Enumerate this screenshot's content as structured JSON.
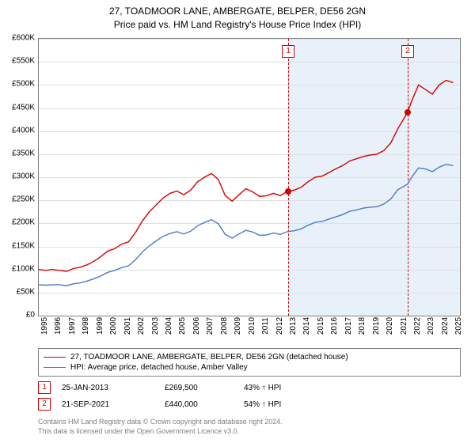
{
  "chart": {
    "title_line1": "27, TOADMOOR LANE, AMBERGATE, BELPER, DE56 2GN",
    "title_line2": "Price paid vs. HM Land Registry's House Price Index (HPI)",
    "background_color": "#ffffff",
    "border_color": "#7f7f7f",
    "grid_color": "#e0e0e0",
    "band_color": "#e8f0fa",
    "y": {
      "min": 0,
      "max": 600000,
      "step": 50000,
      "labels": [
        "£0",
        "£50K",
        "£100K",
        "£150K",
        "£200K",
        "£250K",
        "£300K",
        "£350K",
        "£400K",
        "£450K",
        "£500K",
        "£550K",
        "£600K"
      ]
    },
    "x": {
      "min": 1995,
      "max": 2025.5,
      "labels": [
        "1995",
        "1996",
        "1997",
        "1998",
        "1999",
        "2000",
        "2001",
        "2002",
        "2003",
        "2004",
        "2005",
        "2006",
        "2007",
        "2008",
        "2009",
        "2010",
        "2011",
        "2012",
        "2013",
        "2014",
        "2015",
        "2016",
        "2017",
        "2018",
        "2019",
        "2020",
        "2021",
        "2022",
        "2023",
        "2024",
        "2025"
      ]
    },
    "series": [
      {
        "name": "27, TOADMOOR LANE, AMBERGATE, BELPER, DE56 2GN (detached house)",
        "color": "#d40000",
        "points": [
          [
            1995,
            100000
          ],
          [
            1995.5,
            98000
          ],
          [
            1996,
            100000
          ],
          [
            1996.5,
            98000
          ],
          [
            1997,
            96000
          ],
          [
            1997.5,
            102000
          ],
          [
            1998,
            105000
          ],
          [
            1998.5,
            110000
          ],
          [
            1999,
            118000
          ],
          [
            1999.5,
            128000
          ],
          [
            2000,
            140000
          ],
          [
            2000.5,
            145000
          ],
          [
            2001,
            155000
          ],
          [
            2001.5,
            160000
          ],
          [
            2002,
            180000
          ],
          [
            2002.5,
            205000
          ],
          [
            2003,
            225000
          ],
          [
            2003.5,
            240000
          ],
          [
            2004,
            255000
          ],
          [
            2004.5,
            265000
          ],
          [
            2005,
            270000
          ],
          [
            2005.5,
            262000
          ],
          [
            2006,
            272000
          ],
          [
            2006.5,
            290000
          ],
          [
            2007,
            300000
          ],
          [
            2007.5,
            308000
          ],
          [
            2008,
            295000
          ],
          [
            2008.5,
            260000
          ],
          [
            2009,
            248000
          ],
          [
            2009.5,
            262000
          ],
          [
            2010,
            275000
          ],
          [
            2010.5,
            268000
          ],
          [
            2011,
            258000
          ],
          [
            2011.5,
            260000
          ],
          [
            2012,
            265000
          ],
          [
            2012.5,
            260000
          ],
          [
            2013,
            269500
          ],
          [
            2013.5,
            272000
          ],
          [
            2014,
            278000
          ],
          [
            2014.5,
            290000
          ],
          [
            2015,
            300000
          ],
          [
            2015.5,
            302000
          ],
          [
            2016,
            310000
          ],
          [
            2016.5,
            318000
          ],
          [
            2017,
            325000
          ],
          [
            2017.5,
            335000
          ],
          [
            2018,
            340000
          ],
          [
            2018.5,
            345000
          ],
          [
            2019,
            348000
          ],
          [
            2019.5,
            350000
          ],
          [
            2020,
            358000
          ],
          [
            2020.5,
            375000
          ],
          [
            2021,
            405000
          ],
          [
            2021.7,
            440000
          ],
          [
            2022,
            465000
          ],
          [
            2022.5,
            500000
          ],
          [
            2023,
            490000
          ],
          [
            2023.5,
            480000
          ],
          [
            2024,
            500000
          ],
          [
            2024.5,
            510000
          ],
          [
            2025,
            505000
          ]
        ]
      },
      {
        "name": "HPI: Average price, detached house, Amber Valley",
        "color": "#4a7bc8",
        "points": [
          [
            1995,
            67000
          ],
          [
            1995.5,
            66000
          ],
          [
            1996,
            67000
          ],
          [
            1996.5,
            67000
          ],
          [
            1997,
            65000
          ],
          [
            1997.5,
            69000
          ],
          [
            1998,
            71000
          ],
          [
            1998.5,
            75000
          ],
          [
            1999,
            80000
          ],
          [
            1999.5,
            86000
          ],
          [
            2000,
            94000
          ],
          [
            2000.5,
            98000
          ],
          [
            2001,
            104000
          ],
          [
            2001.5,
            108000
          ],
          [
            2002,
            121000
          ],
          [
            2002.5,
            138000
          ],
          [
            2003,
            151000
          ],
          [
            2003.5,
            162000
          ],
          [
            2004,
            172000
          ],
          [
            2004.5,
            178000
          ],
          [
            2005,
            182000
          ],
          [
            2005.5,
            177000
          ],
          [
            2006,
            183000
          ],
          [
            2006.5,
            195000
          ],
          [
            2007,
            202000
          ],
          [
            2007.5,
            208000
          ],
          [
            2008,
            199000
          ],
          [
            2008.5,
            176000
          ],
          [
            2009,
            168000
          ],
          [
            2009.5,
            177000
          ],
          [
            2010,
            185000
          ],
          [
            2010.5,
            181000
          ],
          [
            2011,
            174000
          ],
          [
            2011.5,
            175000
          ],
          [
            2012,
            179000
          ],
          [
            2012.5,
            176000
          ],
          [
            2013,
            182000
          ],
          [
            2013.5,
            184000
          ],
          [
            2014,
            188000
          ],
          [
            2014.5,
            196000
          ],
          [
            2015,
            202000
          ],
          [
            2015.5,
            204000
          ],
          [
            2016,
            209000
          ],
          [
            2016.5,
            214000
          ],
          [
            2017,
            219000
          ],
          [
            2017.5,
            226000
          ],
          [
            2018,
            229000
          ],
          [
            2018.5,
            233000
          ],
          [
            2019,
            235000
          ],
          [
            2019.5,
            236000
          ],
          [
            2020,
            242000
          ],
          [
            2020.5,
            253000
          ],
          [
            2021,
            273000
          ],
          [
            2021.7,
            285000
          ],
          [
            2022,
            300000
          ],
          [
            2022.5,
            320000
          ],
          [
            2023,
            318000
          ],
          [
            2023.5,
            312000
          ],
          [
            2024,
            322000
          ],
          [
            2024.5,
            328000
          ],
          [
            2025,
            325000
          ]
        ]
      }
    ],
    "sales": [
      {
        "n": "1",
        "date": "25-JAN-2013",
        "price": "£269,500",
        "pct": "43% ↑ HPI",
        "year": 2013.07,
        "value": 269500,
        "color": "#d40000"
      },
      {
        "n": "2",
        "date": "21-SEP-2021",
        "price": "£440,000",
        "pct": "54% ↑ HPI",
        "year": 2021.72,
        "value": 440000,
        "color": "#d40000"
      }
    ]
  },
  "footer": {
    "line1": "Contains HM Land Registry data © Crown copyright and database right 2024.",
    "line2": "This data is licensed under the Open Government Licence v3.0."
  }
}
